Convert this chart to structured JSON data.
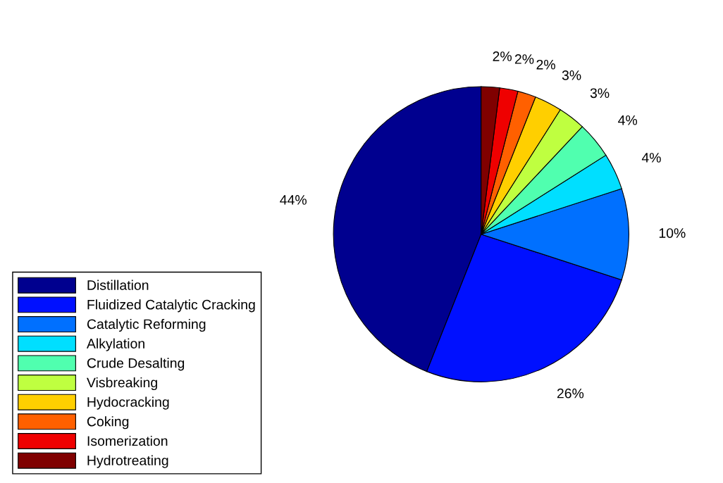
{
  "chart_data": {
    "type": "pie",
    "categories": [
      "Distillation",
      "Fluidized Catalytic Cracking",
      "Catalytic Reforming",
      "Alkylation",
      "Crude Desalting",
      "Visbreaking",
      "Hydocracking",
      "Coking",
      "Isomerization",
      "Hydrotreating"
    ],
    "values": [
      44,
      26,
      10,
      4,
      4,
      3,
      3,
      2,
      2,
      2
    ],
    "value_labels": [
      "44%",
      "26%",
      "10%",
      "4%",
      "4%",
      "3%",
      "3%",
      "2%",
      "2%",
      "2%"
    ],
    "colors": [
      "#00008f",
      "#0010ff",
      "#0070ff",
      "#00dfff",
      "#50ffaf",
      "#bfff40",
      "#ffcf00",
      "#ff6000",
      "#ef0000",
      "#800000"
    ],
    "legend": "bottom left"
  }
}
